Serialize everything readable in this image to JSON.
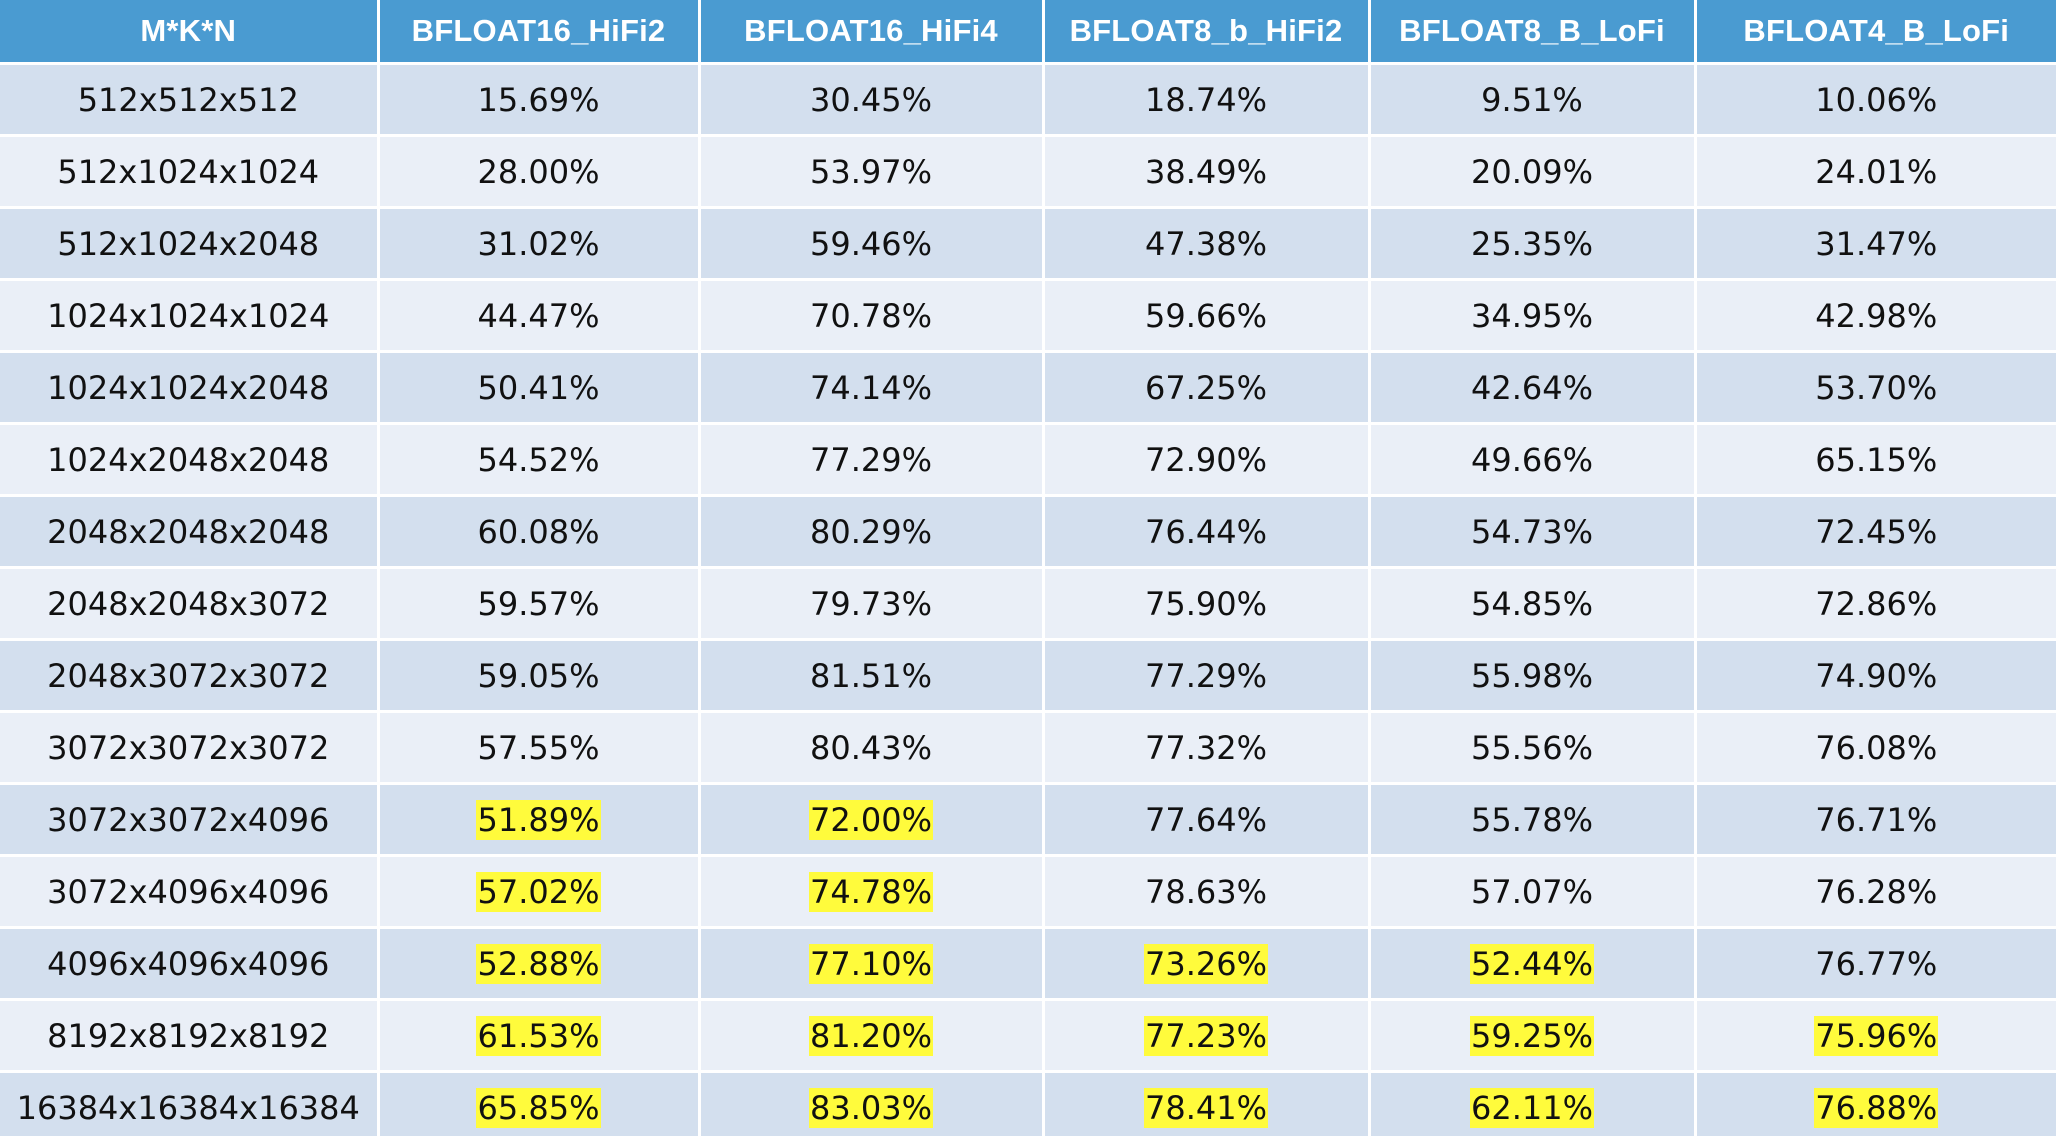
{
  "table": {
    "headers": [
      "M*K*N",
      "BFLOAT16_HiFi2",
      "BFLOAT16_HiFi4",
      "BFLOAT8_b_HiFi2",
      "BFLOAT8_B_LoFi",
      "BFLOAT4_B_LoFi"
    ],
    "highlight_color": "#fffb3c",
    "header_color": "#4a9bd1",
    "rows": [
      {
        "shape": "512x512x512",
        "cells": [
          {
            "v": "15.69%",
            "h": false
          },
          {
            "v": "30.45%",
            "h": false
          },
          {
            "v": "18.74%",
            "h": false
          },
          {
            "v": "9.51%",
            "h": false
          },
          {
            "v": "10.06%",
            "h": false
          }
        ]
      },
      {
        "shape": "512x1024x1024",
        "cells": [
          {
            "v": "28.00%",
            "h": false
          },
          {
            "v": "53.97%",
            "h": false
          },
          {
            "v": "38.49%",
            "h": false
          },
          {
            "v": "20.09%",
            "h": false
          },
          {
            "v": "24.01%",
            "h": false
          }
        ]
      },
      {
        "shape": "512x1024x2048",
        "cells": [
          {
            "v": "31.02%",
            "h": false
          },
          {
            "v": "59.46%",
            "h": false
          },
          {
            "v": "47.38%",
            "h": false
          },
          {
            "v": "25.35%",
            "h": false
          },
          {
            "v": "31.47%",
            "h": false
          }
        ]
      },
      {
        "shape": "1024x1024x1024",
        "cells": [
          {
            "v": "44.47%",
            "h": false
          },
          {
            "v": "70.78%",
            "h": false
          },
          {
            "v": "59.66%",
            "h": false
          },
          {
            "v": "34.95%",
            "h": false
          },
          {
            "v": "42.98%",
            "h": false
          }
        ]
      },
      {
        "shape": "1024x1024x2048",
        "cells": [
          {
            "v": "50.41%",
            "h": false
          },
          {
            "v": "74.14%",
            "h": false
          },
          {
            "v": "67.25%",
            "h": false
          },
          {
            "v": "42.64%",
            "h": false
          },
          {
            "v": "53.70%",
            "h": false
          }
        ]
      },
      {
        "shape": "1024x2048x2048",
        "cells": [
          {
            "v": "54.52%",
            "h": false
          },
          {
            "v": "77.29%",
            "h": false
          },
          {
            "v": "72.90%",
            "h": false
          },
          {
            "v": "49.66%",
            "h": false
          },
          {
            "v": "65.15%",
            "h": false
          }
        ]
      },
      {
        "shape": "2048x2048x2048",
        "cells": [
          {
            "v": "60.08%",
            "h": false
          },
          {
            "v": "80.29%",
            "h": false
          },
          {
            "v": "76.44%",
            "h": false
          },
          {
            "v": "54.73%",
            "h": false
          },
          {
            "v": "72.45%",
            "h": false
          }
        ]
      },
      {
        "shape": "2048x2048x3072",
        "cells": [
          {
            "v": "59.57%",
            "h": false
          },
          {
            "v": "79.73%",
            "h": false
          },
          {
            "v": "75.90%",
            "h": false
          },
          {
            "v": "54.85%",
            "h": false
          },
          {
            "v": "72.86%",
            "h": false
          }
        ]
      },
      {
        "shape": "2048x3072x3072",
        "cells": [
          {
            "v": "59.05%",
            "h": false
          },
          {
            "v": "81.51%",
            "h": false
          },
          {
            "v": "77.29%",
            "h": false
          },
          {
            "v": "55.98%",
            "h": false
          },
          {
            "v": "74.90%",
            "h": false
          }
        ]
      },
      {
        "shape": "3072x3072x3072",
        "cells": [
          {
            "v": "57.55%",
            "h": false
          },
          {
            "v": "80.43%",
            "h": false
          },
          {
            "v": "77.32%",
            "h": false
          },
          {
            "v": "55.56%",
            "h": false
          },
          {
            "v": "76.08%",
            "h": false
          }
        ]
      },
      {
        "shape": "3072x3072x4096",
        "cells": [
          {
            "v": "51.89%",
            "h": true
          },
          {
            "v": "72.00%",
            "h": true
          },
          {
            "v": "77.64%",
            "h": false
          },
          {
            "v": "55.78%",
            "h": false
          },
          {
            "v": "76.71%",
            "h": false
          }
        ]
      },
      {
        "shape": "3072x4096x4096",
        "cells": [
          {
            "v": "57.02%",
            "h": true
          },
          {
            "v": "74.78%",
            "h": true
          },
          {
            "v": "78.63%",
            "h": false
          },
          {
            "v": "57.07%",
            "h": false
          },
          {
            "v": "76.28%",
            "h": false
          }
        ]
      },
      {
        "shape": "4096x4096x4096",
        "cells": [
          {
            "v": "52.88%",
            "h": true
          },
          {
            "v": "77.10%",
            "h": true
          },
          {
            "v": "73.26%",
            "h": true
          },
          {
            "v": "52.44%",
            "h": true
          },
          {
            "v": "76.77%",
            "h": false
          }
        ]
      },
      {
        "shape": "8192x8192x8192",
        "cells": [
          {
            "v": "61.53%",
            "h": true
          },
          {
            "v": "81.20%",
            "h": true
          },
          {
            "v": "77.23%",
            "h": true
          },
          {
            "v": "59.25%",
            "h": true
          },
          {
            "v": "75.96%",
            "h": true
          }
        ]
      },
      {
        "shape": "16384x16384x16384",
        "cells": [
          {
            "v": "65.85%",
            "h": true
          },
          {
            "v": "83.03%",
            "h": true
          },
          {
            "v": "78.41%",
            "h": true
          },
          {
            "v": "62.11%",
            "h": true
          },
          {
            "v": "76.88%",
            "h": true
          }
        ]
      }
    ]
  }
}
